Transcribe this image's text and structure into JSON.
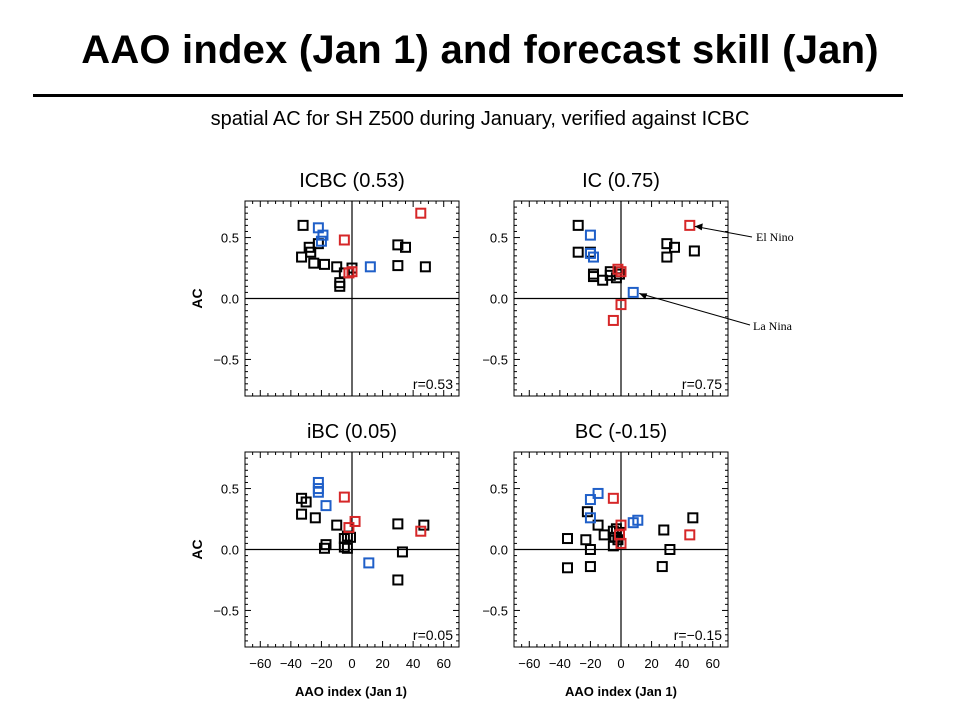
{
  "slide": {
    "title": "AAO index (Jan 1) and forecast skill (Jan)",
    "subtitle": "spatial AC for SH Z500 during January, verified against ICBC"
  },
  "colors": {
    "neutral": "#000000",
    "el_nino": "#d62728",
    "la_nina": "#1f5fc8"
  },
  "annotations": {
    "el_nino": "El Nino",
    "la_nina": "La Nina"
  },
  "chart_data": [
    {
      "type": "scatter",
      "title": "ICBC (0.53)",
      "xlabel": "",
      "ylabel": "AC",
      "xlim": [
        -70,
        70
      ],
      "ylim": [
        -0.8,
        0.8
      ],
      "xticks": [
        -60,
        -40,
        -20,
        0,
        20,
        40,
        60
      ],
      "yticks": [
        -0.5,
        0.0,
        0.5
      ],
      "r_label": "r=0.53",
      "series": [
        {
          "points": [
            [
              -32,
              0.6
            ],
            [
              -28,
              0.42
            ],
            [
              -22,
              0.45
            ],
            [
              -27,
              0.38
            ],
            [
              -33,
              0.34
            ],
            [
              -25,
              0.29
            ],
            [
              -18,
              0.28
            ],
            [
              -10,
              0.26
            ],
            [
              0,
              0.25
            ],
            [
              -5,
              0.21
            ],
            [
              -8,
              0.13
            ],
            [
              -8,
              0.1
            ],
            [
              30,
              0.44
            ],
            [
              35,
              0.42
            ],
            [
              30,
              0.27
            ],
            [
              48,
              0.26
            ]
          ]
        },
        {
          "points": [
            [
              -22,
              0.58
            ],
            [
              -19,
              0.52
            ],
            [
              -20,
              0.47
            ],
            [
              12,
              0.26
            ]
          ]
        },
        {
          "points": [
            [
              45,
              0.7
            ],
            [
              -5,
              0.48
            ],
            [
              0,
              0.22
            ],
            [
              -2,
              0.21
            ]
          ]
        }
      ]
    },
    {
      "type": "scatter",
      "title": "IC (0.75)",
      "xlabel": "",
      "ylabel": "",
      "xlim": [
        -70,
        70
      ],
      "ylim": [
        -0.8,
        0.8
      ],
      "xticks": [
        -60,
        -40,
        -20,
        0,
        20,
        40,
        60
      ],
      "yticks": [
        -0.5,
        0.0,
        0.5
      ],
      "r_label": "r=0.75",
      "series": [
        {
          "points": [
            [
              -28,
              0.6
            ],
            [
              -28,
              0.38
            ],
            [
              -20,
              0.38
            ],
            [
              -18,
              0.2
            ],
            [
              -18,
              0.18
            ],
            [
              -12,
              0.15
            ],
            [
              -7,
              0.22
            ],
            [
              -7,
              0.19
            ],
            [
              -3,
              0.17
            ],
            [
              -1,
              0.2
            ],
            [
              30,
              0.45
            ],
            [
              35,
              0.42
            ],
            [
              30,
              0.34
            ],
            [
              48,
              0.39
            ]
          ]
        },
        {
          "points": [
            [
              -20,
              0.52
            ],
            [
              -20,
              0.37
            ],
            [
              -18,
              0.34
            ],
            [
              8,
              0.05
            ]
          ]
        },
        {
          "points": [
            [
              45,
              0.6
            ],
            [
              -2,
              0.24
            ],
            [
              0,
              0.22
            ],
            [
              -5,
              -0.18
            ],
            [
              0,
              -0.05
            ]
          ]
        }
      ]
    },
    {
      "type": "scatter",
      "title": "iBC (0.05)",
      "xlabel": "AAO index (Jan 1)",
      "ylabel": "AC",
      "xlim": [
        -70,
        70
      ],
      "ylim": [
        -0.8,
        0.8
      ],
      "xticks": [
        -60,
        -40,
        -20,
        0,
        20,
        40,
        60
      ],
      "yticks": [
        -0.5,
        0.0,
        0.5
      ],
      "r_label": "r=0.05",
      "series": [
        {
          "points": [
            [
              -33,
              0.42
            ],
            [
              -30,
              0.39
            ],
            [
              -33,
              0.29
            ],
            [
              -24,
              0.26
            ],
            [
              -10,
              0.2
            ],
            [
              -17,
              0.04
            ],
            [
              -18,
              0.01
            ],
            [
              -5,
              0.09
            ],
            [
              -3,
              0.11
            ],
            [
              -1,
              0.1
            ],
            [
              -5,
              0.02
            ],
            [
              -3,
              0.01
            ],
            [
              30,
              0.21
            ],
            [
              47,
              0.2
            ],
            [
              33,
              -0.02
            ],
            [
              30,
              -0.25
            ]
          ]
        },
        {
          "points": [
            [
              -22,
              0.55
            ],
            [
              -22,
              0.5
            ],
            [
              -22,
              0.47
            ],
            [
              -17,
              0.36
            ],
            [
              11,
              -0.11
            ]
          ]
        },
        {
          "points": [
            [
              -5,
              0.43
            ],
            [
              2,
              0.23
            ],
            [
              -2,
              0.18
            ],
            [
              45,
              0.15
            ]
          ]
        }
      ]
    },
    {
      "type": "scatter",
      "title": "BC (-0.15)",
      "xlabel": "AAO index (Jan 1)",
      "ylabel": "",
      "xlim": [
        -70,
        70
      ],
      "ylim": [
        -0.8,
        0.8
      ],
      "xticks": [
        -60,
        -40,
        -20,
        0,
        20,
        40,
        60
      ],
      "yticks": [
        -0.5,
        0.0,
        0.5
      ],
      "r_label": "r=−0.15",
      "series": [
        {
          "points": [
            [
              -22,
              0.31
            ],
            [
              -15,
              0.2
            ],
            [
              -35,
              0.09
            ],
            [
              -23,
              0.08
            ],
            [
              -11,
              0.12
            ],
            [
              -5,
              0.15
            ],
            [
              -3,
              0.17
            ],
            [
              -20,
              0.0
            ],
            [
              -4,
              0.1
            ],
            [
              -2,
              0.08
            ],
            [
              -1,
              0.14
            ],
            [
              -5,
              0.03
            ],
            [
              -35,
              -0.15
            ],
            [
              -20,
              -0.14
            ],
            [
              28,
              0.16
            ],
            [
              47,
              0.26
            ],
            [
              32,
              0.0
            ],
            [
              27,
              -0.14
            ]
          ]
        },
        {
          "points": [
            [
              -15,
              0.46
            ],
            [
              -20,
              0.41
            ],
            [
              -20,
              0.26
            ],
            [
              8,
              0.22
            ],
            [
              11,
              0.24
            ]
          ]
        },
        {
          "points": [
            [
              -5,
              0.42
            ],
            [
              0,
              0.2
            ],
            [
              -1,
              0.12
            ],
            [
              45,
              0.12
            ],
            [
              0,
              0.05
            ]
          ]
        }
      ]
    }
  ]
}
